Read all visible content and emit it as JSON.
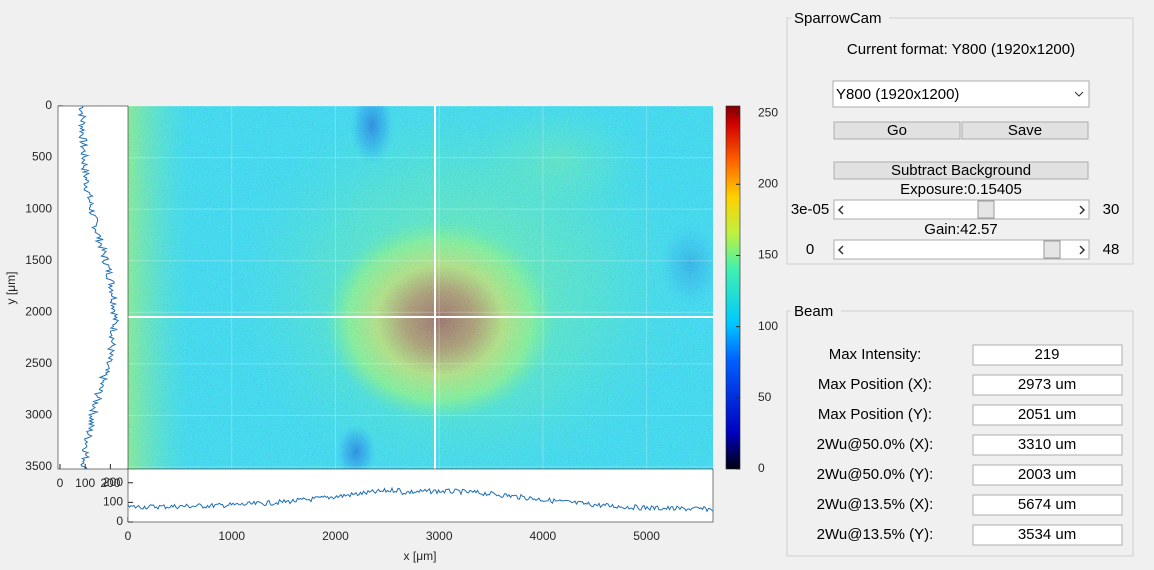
{
  "plot": {
    "type": "heatmap",
    "xlabel": "x [μm]",
    "ylabel": "y [μm]",
    "xlim": [
      0,
      5640
    ],
    "xticks": [
      0,
      1000,
      2000,
      3000,
      4000,
      5000
    ],
    "ylim": [
      0,
      3520
    ],
    "yticks": [
      0,
      500,
      1000,
      1500,
      2000,
      2500,
      3000,
      3500
    ],
    "colorbar": {
      "lim": [
        0,
        255
      ],
      "ticks": [
        0,
        50,
        100,
        150,
        200,
        250
      ]
    },
    "x_profile": {
      "ylim": [
        0,
        270
      ],
      "yticks": [
        0,
        100,
        200
      ]
    },
    "y_profile": {
      "xlim": [
        0,
        270
      ],
      "xticks": [
        0,
        100,
        200
      ]
    }
  },
  "camera_panel": {
    "title": "SparrowCam",
    "current_format": "Current format: Y800 (1920x1200)",
    "format_select": "Y800 (1920x1200)",
    "go_button": "Go",
    "save_button": "Save",
    "subtract_button": "Subtract Background",
    "exposure_label": "Exposure:0.15405",
    "exposure_min": "3e-05",
    "exposure_max": 30,
    "gain_label": "Gain:42.57",
    "gain_min": 0,
    "gain_max": 48
  },
  "beam_panel": {
    "title": "Beam",
    "rows": [
      {
        "label": "Max Intensity:",
        "value": 219
      },
      {
        "label": "Max Position (X):",
        "value": "2973 um"
      },
      {
        "label": "Max Position (Y):",
        "value": "2051 um"
      },
      {
        "label": "2Wu@50.0% (X):",
        "value": "3310 um"
      },
      {
        "label": "2Wu@50.0% (Y):",
        "value": "2003 um"
      },
      {
        "label": "2Wu@13.5% (X):",
        "value": "5674 um"
      },
      {
        "label": "2Wu@13.5% (Y):",
        "value": "3534 um"
      }
    ]
  }
}
